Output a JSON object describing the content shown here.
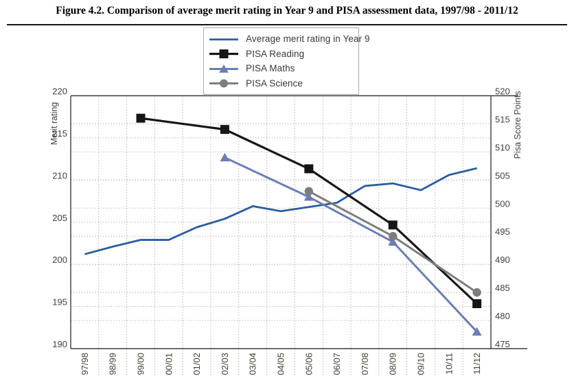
{
  "figure": {
    "title": "Figure 4.2. Comparison of average merit rating in Year 9 and PISA assessment data, 1997/98 - 2011/12"
  },
  "axes": {
    "left_title": "Merit rating",
    "right_title": "Pisa Score Points",
    "left_ticks": [
      220,
      215,
      210,
      205,
      200,
      195,
      190
    ],
    "right_ticks": [
      520,
      515,
      510,
      505,
      500,
      495,
      490,
      485,
      480,
      475
    ]
  },
  "colors": {
    "merit_blue": "#2a5d9f",
    "reading_black": "#161616",
    "maths_slate": "#6c7db5",
    "science_gray": "#7d7d7d",
    "grid_gray": "#b5b5b5",
    "frame_gray": "#3a3a3a",
    "tick_text": "#41413a"
  },
  "chart_data": {
    "type": "line",
    "title": "Figure 4.2. Comparison of average merit rating in Year 9 and PISA assessment data, 1997/98 - 2011/12",
    "categories": [
      "97/98",
      "98/99",
      "99/00",
      "00/01",
      "01/02",
      "02/03",
      "03/04",
      "04/05",
      "05/06",
      "06/07",
      "07/08",
      "08/09",
      "09/10",
      "10/11",
      "11/12"
    ],
    "series": [
      {
        "name": "Average merit rating in Year 9",
        "axis": "left",
        "marker": "none",
        "color": "#2a5d9f",
        "width": 2.8,
        "values": [
          201.2,
          202.1,
          202.9,
          202.9,
          204.4,
          205.4,
          206.9,
          206.3,
          206.8,
          207.3,
          209.3,
          209.6,
          208.8,
          210.6,
          211.4
        ]
      },
      {
        "name": "PISA Reading",
        "axis": "right",
        "marker": "square",
        "color": "#161616",
        "width": 3.2,
        "values": [
          null,
          null,
          516,
          null,
          null,
          514,
          null,
          null,
          507,
          null,
          null,
          497,
          null,
          null,
          483
        ]
      },
      {
        "name": "PISA Maths",
        "axis": "right",
        "marker": "triangle",
        "color": "#6c7db5",
        "width": 3,
        "values": [
          null,
          null,
          null,
          null,
          null,
          509,
          null,
          null,
          502,
          null,
          null,
          494,
          null,
          null,
          478
        ]
      },
      {
        "name": "PISA Science",
        "axis": "right",
        "marker": "circle",
        "color": "#7d7d7d",
        "width": 3,
        "values": [
          null,
          null,
          null,
          null,
          null,
          null,
          null,
          null,
          503,
          null,
          null,
          495,
          null,
          null,
          485
        ]
      }
    ],
    "left_axis": {
      "label": "Merit rating",
      "min": 190,
      "max": 220,
      "tick_step": 5
    },
    "right_axis": {
      "label": "Pisa Score Points",
      "min": 475,
      "max": 520,
      "tick_step": 5
    },
    "grid": true,
    "legend_position": "top-center"
  }
}
